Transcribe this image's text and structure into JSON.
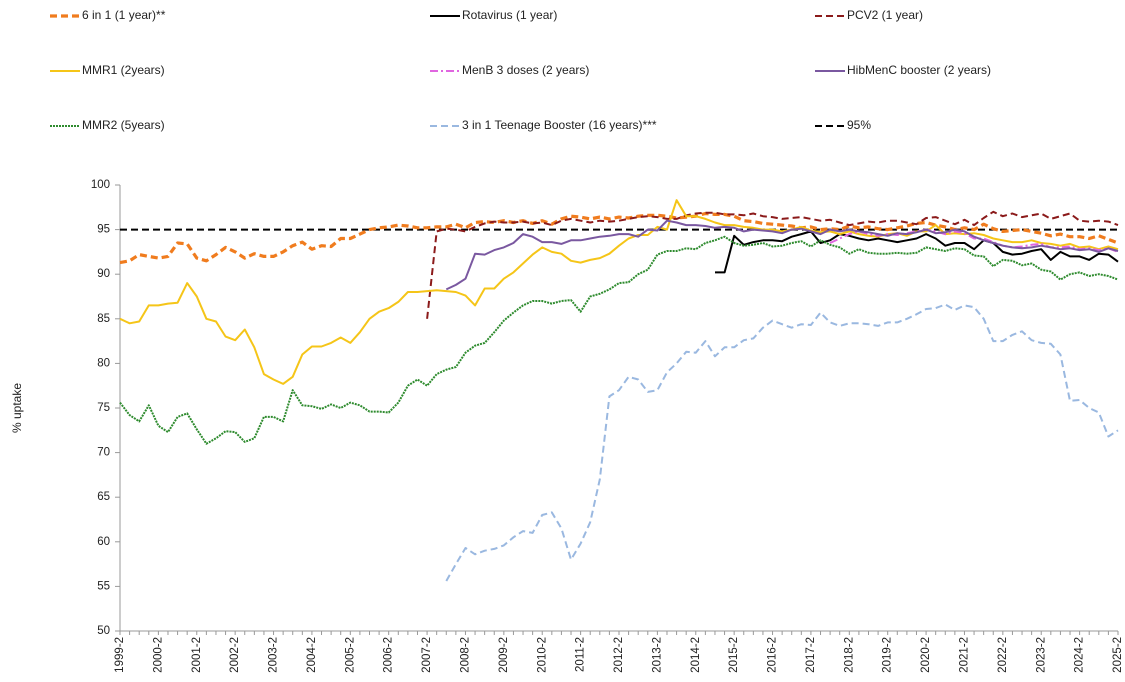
{
  "chart_data": {
    "type": "line",
    "y_label": "% uptake",
    "ylim": [
      50,
      100
    ],
    "yticks": [
      50,
      55,
      60,
      65,
      70,
      75,
      80,
      85,
      90,
      95,
      100
    ],
    "categories": [
      "1999-2",
      null,
      null,
      null,
      "2000-2",
      null,
      null,
      null,
      "2001-2",
      null,
      null,
      null,
      "2002-2",
      null,
      null,
      null,
      "2003-2",
      null,
      null,
      null,
      "2004-2",
      null,
      null,
      null,
      "2005-2",
      null,
      null,
      null,
      "2006-2",
      null,
      null,
      null,
      "2007-2",
      null,
      null,
      null,
      "2008-2",
      null,
      null,
      null,
      "2009-2",
      null,
      null,
      null,
      "2010-2",
      null,
      null,
      null,
      "2011-2",
      null,
      null,
      null,
      "2012-2",
      null,
      null,
      null,
      "2013-2",
      null,
      null,
      null,
      "2014-2",
      null,
      null,
      null,
      "2015-2",
      null,
      null,
      null,
      "2016-2",
      null,
      null,
      null,
      "2017-2",
      null,
      null,
      null,
      "2018-2",
      null,
      null,
      null,
      "2019-2",
      null,
      null,
      null,
      "2020-2",
      null,
      null,
      null,
      "2021-2",
      null,
      null,
      null,
      "2022-2",
      null,
      null,
      null,
      "2023-2",
      null,
      null,
      null,
      "2024-2",
      null,
      null,
      null,
      "2025-2"
    ],
    "reference_line": {
      "name": "95%",
      "value": 95,
      "color": "#000000",
      "style": "dashed"
    },
    "series": [
      {
        "name": "6 in 1 (1 year)**",
        "color": "#f07c1e",
        "style": "thickdash",
        "values": [
          91.3,
          91.5,
          92.2,
          92.0,
          91.8,
          92.0,
          93.5,
          93.4,
          91.8,
          91.5,
          92.2,
          93.0,
          92.5,
          91.8,
          92.3,
          92.0,
          92.0,
          92.5,
          93.2,
          93.6,
          92.8,
          93.2,
          93.1,
          94.0,
          94.0,
          94.5,
          95.0,
          95.2,
          95.3,
          95.5,
          95.4,
          95.2,
          95.2,
          95.3,
          95.3,
          95.6,
          95.2,
          95.8,
          95.9,
          95.8,
          96.0,
          95.8,
          96.0,
          95.7,
          96.0,
          95.6,
          96.2,
          96.5,
          96.4,
          96.2,
          96.4,
          96.2,
          96.4,
          96.3,
          96.5,
          96.6,
          96.6,
          96.5,
          96.3,
          96.4,
          96.5,
          96.8,
          96.7,
          96.7,
          96.5,
          96.0,
          95.9,
          95.7,
          95.6,
          95.5,
          95.4,
          95.2,
          95.3,
          95.0,
          95.1,
          95.0,
          95.4,
          95.2,
          95.3,
          95.1,
          95.0,
          95.2,
          95.4,
          95.7,
          95.8,
          95.5,
          95.3,
          95.0,
          95.2,
          95.0,
          95.6,
          95.1,
          94.8,
          94.9,
          95.0,
          94.8,
          94.6,
          94.3,
          94.5,
          94.2,
          94.2,
          94.0,
          94.3,
          93.9,
          93.5
        ]
      },
      {
        "name": "Rotavirus (1 year)",
        "color": "#000000",
        "style": "solid",
        "values": [
          null,
          null,
          null,
          null,
          null,
          null,
          null,
          null,
          null,
          null,
          null,
          null,
          null,
          null,
          null,
          null,
          null,
          null,
          null,
          null,
          null,
          null,
          null,
          null,
          null,
          null,
          null,
          null,
          null,
          null,
          null,
          null,
          null,
          null,
          null,
          null,
          null,
          null,
          null,
          null,
          null,
          null,
          null,
          null,
          null,
          null,
          null,
          null,
          null,
          null,
          null,
          null,
          null,
          null,
          null,
          null,
          null,
          null,
          null,
          null,
          null,
          null,
          90.2,
          90.2,
          94.3,
          93.3,
          93.6,
          93.8,
          93.8,
          93.7,
          94.2,
          94.5,
          94.8,
          93.5,
          93.8,
          94.5,
          94.3,
          94.0,
          93.8,
          94.0,
          93.8,
          93.6,
          93.8,
          94.0,
          94.5,
          94.0,
          93.2,
          93.5,
          93.5,
          92.8,
          93.8,
          93.5,
          92.5,
          92.2,
          92.3,
          92.6,
          92.8,
          91.6,
          92.5,
          92.0,
          92.0,
          91.6,
          92.3,
          92.2,
          91.4
        ]
      },
      {
        "name": "PCV2 (1 year)",
        "color": "#8b1a1a",
        "style": "dashed",
        "values": [
          null,
          null,
          null,
          null,
          null,
          null,
          null,
          null,
          null,
          null,
          null,
          null,
          null,
          null,
          null,
          null,
          null,
          null,
          null,
          null,
          null,
          null,
          null,
          null,
          null,
          null,
          null,
          null,
          null,
          null,
          null,
          null,
          85.0,
          94.8,
          95.1,
          95.0,
          94.8,
          95.3,
          95.7,
          95.9,
          95.8,
          95.8,
          95.9,
          95.7,
          95.8,
          95.5,
          96.0,
          96.2,
          96.0,
          95.8,
          96.0,
          95.9,
          96.0,
          96.2,
          96.4,
          96.5,
          96.4,
          96.2,
          96.2,
          96.6,
          96.8,
          96.9,
          96.9,
          96.7,
          96.7,
          96.6,
          96.8,
          96.5,
          96.4,
          96.2,
          96.3,
          96.4,
          96.2,
          96.0,
          96.1,
          95.8,
          95.5,
          95.7,
          95.9,
          95.8,
          96.0,
          96.0,
          95.8,
          95.6,
          96.3,
          96.4,
          96.0,
          95.6,
          96.1,
          95.5,
          96.3,
          97.0,
          96.5,
          96.8,
          96.4,
          96.6,
          96.8,
          96.2,
          96.5,
          96.8,
          96.0,
          95.9,
          96.0,
          95.9,
          95.5
        ]
      },
      {
        "name": "MMR1 (2years)",
        "color": "#f5c518",
        "style": "solid",
        "values": [
          85.0,
          84.5,
          84.7,
          86.5,
          86.5,
          86.7,
          86.8,
          89.0,
          87.5,
          85.0,
          84.7,
          83.0,
          82.6,
          83.8,
          81.8,
          78.8,
          78.2,
          77.7,
          78.5,
          81.0,
          81.9,
          81.9,
          82.3,
          82.9,
          82.3,
          83.5,
          85.0,
          85.8,
          86.2,
          86.9,
          88.0,
          88.0,
          88.1,
          88.2,
          88.1,
          88.0,
          87.6,
          86.5,
          88.4,
          88.4,
          89.5,
          90.2,
          91.2,
          92.2,
          93.0,
          92.5,
          92.3,
          91.5,
          91.3,
          91.6,
          91.8,
          92.3,
          93.2,
          94.0,
          94.4,
          94.4,
          95.3,
          95.0,
          98.3,
          96.5,
          96.5,
          96.2,
          95.8,
          95.5,
          95.5,
          95.3,
          95.2,
          95.0,
          95.0,
          94.8,
          95.0,
          95.3,
          94.9,
          94.7,
          94.8,
          94.5,
          94.8,
          94.5,
          94.3,
          94.2,
          94.5,
          94.6,
          94.3,
          94.8,
          94.8,
          95.5,
          94.5,
          94.6,
          94.5,
          94.6,
          94.4,
          94.0,
          93.8,
          93.6,
          93.6,
          93.8,
          93.5,
          93.4,
          93.2,
          93.4,
          93.0,
          93.1,
          92.8,
          93.1,
          92.8
        ]
      },
      {
        "name": "MenB 3 doses (2 years)",
        "color": "#e066e0",
        "style": "dashdot",
        "values": [
          null,
          null,
          null,
          null,
          null,
          null,
          null,
          null,
          null,
          null,
          null,
          null,
          null,
          null,
          null,
          null,
          null,
          null,
          null,
          null,
          null,
          null,
          null,
          null,
          null,
          null,
          null,
          null,
          null,
          null,
          null,
          null,
          null,
          null,
          null,
          null,
          null,
          null,
          null,
          null,
          null,
          null,
          null,
          null,
          null,
          null,
          null,
          null,
          null,
          null,
          null,
          null,
          null,
          null,
          null,
          null,
          null,
          null,
          null,
          null,
          null,
          null,
          null,
          null,
          null,
          null,
          null,
          null,
          null,
          null,
          null,
          null,
          null,
          null,
          93.5,
          94.0,
          94.5,
          94.8,
          94.5,
          94.3,
          94.5,
          94.4,
          94.6,
          94.8,
          95.0,
          94.8,
          94.5,
          94.8,
          94.6,
          94.0,
          94.0,
          93.6,
          93.2,
          93.0,
          93.1,
          93.3,
          93.4,
          93.0,
          93.0,
          93.1,
          92.8,
          92.9,
          92.7,
          92.9,
          92.5
        ]
      },
      {
        "name": "HibMenC booster (2 years)",
        "color": "#7a58a0",
        "style": "solid",
        "values": [
          null,
          null,
          null,
          null,
          null,
          null,
          null,
          null,
          null,
          null,
          null,
          null,
          null,
          null,
          null,
          null,
          null,
          null,
          null,
          null,
          null,
          null,
          null,
          null,
          null,
          null,
          null,
          null,
          null,
          null,
          null,
          null,
          null,
          null,
          88.3,
          88.8,
          89.5,
          92.3,
          92.2,
          92.7,
          93.0,
          93.5,
          94.5,
          94.2,
          93.6,
          93.6,
          93.4,
          93.8,
          93.8,
          94.0,
          94.2,
          94.3,
          94.5,
          94.5,
          94.2,
          95.0,
          94.9,
          96.0,
          95.8,
          95.5,
          95.5,
          95.4,
          95.2,
          95.3,
          95.2,
          94.8,
          95.0,
          94.9,
          94.8,
          94.6,
          95.0,
          95.1,
          94.8,
          94.5,
          95.0,
          94.8,
          95.0,
          94.8,
          94.7,
          94.5,
          94.3,
          94.6,
          94.5,
          94.7,
          95.0,
          94.6,
          94.7,
          95.0,
          94.8,
          94.2,
          93.8,
          93.5,
          93.2,
          93.0,
          92.9,
          93.0,
          93.2,
          93.0,
          92.8,
          92.9,
          92.7,
          92.8,
          92.5,
          92.9,
          92.6
        ]
      },
      {
        "name": "MMR2 (5years)",
        "color": "#2e8b2e",
        "style": "dotted",
        "values": [
          75.6,
          74.2,
          73.5,
          75.3,
          73.0,
          72.3,
          74.0,
          74.4,
          72.6,
          71.0,
          71.6,
          72.4,
          72.3,
          71.2,
          71.6,
          74.0,
          74.0,
          73.5,
          77.0,
          75.3,
          75.2,
          74.9,
          75.4,
          75.0,
          75.6,
          75.3,
          74.6,
          74.6,
          74.5,
          75.6,
          77.5,
          78.2,
          77.5,
          78.8,
          79.3,
          79.6,
          81.2,
          82.0,
          82.3,
          83.5,
          84.8,
          85.7,
          86.5,
          87.0,
          87.0,
          86.7,
          87.0,
          87.1,
          85.8,
          87.5,
          87.8,
          88.3,
          89.0,
          89.1,
          90.0,
          90.5,
          92.2,
          92.6,
          92.6,
          92.9,
          92.8,
          93.5,
          93.8,
          94.2,
          93.5,
          93.2,
          93.3,
          93.5,
          93.1,
          93.2,
          93.5,
          93.7,
          93.1,
          93.8,
          93.3,
          93.0,
          92.3,
          92.8,
          92.4,
          92.3,
          92.3,
          92.4,
          92.3,
          92.4,
          93.0,
          92.8,
          92.6,
          92.9,
          92.8,
          92.1,
          92.0,
          90.9,
          91.6,
          91.5,
          91.0,
          91.2,
          90.5,
          90.3,
          89.4,
          90.0,
          90.2,
          89.8,
          90.0,
          89.8,
          89.4
        ]
      },
      {
        "name": "3 in 1 Teenage Booster (16 years)***",
        "color": "#9ab8e0",
        "style": "dashed",
        "values": [
          null,
          null,
          null,
          null,
          null,
          null,
          null,
          null,
          null,
          null,
          null,
          null,
          null,
          null,
          null,
          null,
          null,
          null,
          null,
          null,
          null,
          null,
          null,
          null,
          null,
          null,
          null,
          null,
          null,
          null,
          null,
          null,
          null,
          null,
          55.6,
          57.5,
          59.3,
          58.6,
          59.0,
          59.2,
          59.6,
          60.5,
          61.2,
          61.0,
          63.0,
          63.3,
          61.5,
          58.0,
          59.8,
          62.2,
          67.0,
          76.3,
          77.0,
          78.5,
          78.2,
          76.8,
          77.0,
          79.0,
          80.0,
          81.3,
          81.2,
          82.5,
          80.8,
          81.8,
          81.8,
          82.6,
          82.8,
          84.0,
          84.8,
          84.4,
          84.0,
          84.4,
          84.3,
          85.7,
          84.6,
          84.2,
          84.5,
          84.5,
          84.4,
          84.2,
          84.6,
          84.6,
          85.0,
          85.5,
          86.1,
          86.2,
          86.6,
          86.0,
          86.5,
          86.3,
          85.0,
          82.5,
          82.5,
          83.2,
          83.6,
          82.6,
          82.3,
          82.2,
          81.0,
          75.8,
          75.9,
          75.0,
          74.5,
          71.8,
          72.5
        ]
      }
    ]
  }
}
